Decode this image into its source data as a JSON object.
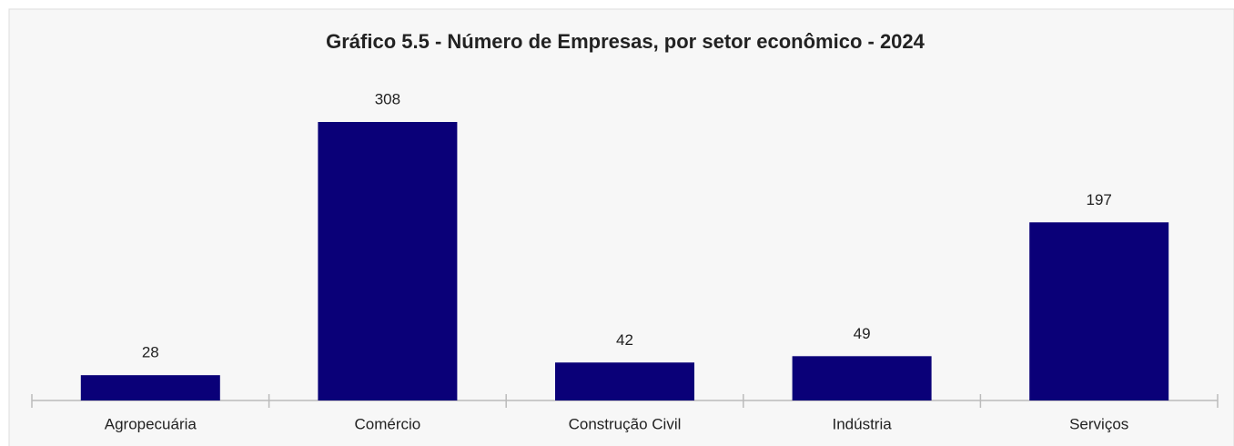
{
  "chart_data": {
    "type": "bar",
    "title": "Gráfico 5.5 - Número de Empresas, por setor econômico - 2024",
    "categories": [
      "Agropecuária",
      "Comércio",
      "Construção Civil",
      "Indústria",
      "Serviços"
    ],
    "values": [
      28,
      308,
      42,
      49,
      197
    ],
    "color": "#0a0078"
  }
}
